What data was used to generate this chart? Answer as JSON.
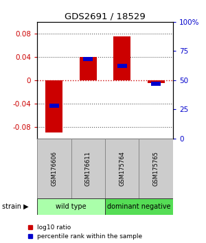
{
  "title": "GDS2691 / 18529",
  "samples": [
    "GSM176606",
    "GSM176611",
    "GSM175764",
    "GSM175765"
  ],
  "log10_ratios": [
    -0.09,
    0.04,
    0.075,
    -0.005
  ],
  "percentile_ranks": [
    28,
    68,
    62,
    47
  ],
  "groups": [
    {
      "name": "wild type",
      "samples": [
        0,
        1
      ],
      "color": "#aaffaa"
    },
    {
      "name": "dominant negative",
      "samples": [
        2,
        3
      ],
      "color": "#55dd55"
    }
  ],
  "ylim": [
    -0.1,
    0.1
  ],
  "yticks_left": [
    -0.08,
    -0.04,
    0,
    0.04,
    0.08
  ],
  "yticks_right": [
    0,
    25,
    50,
    75,
    100
  ],
  "bar_width": 0.5,
  "red_color": "#cc0000",
  "blue_color": "#0000cc",
  "group_label": "strain",
  "legend_red": "log10 ratio",
  "legend_blue": "percentile rank within the sample",
  "dotted_line_color": "#555555",
  "zero_line_color": "#cc0000",
  "sample_cell_color": "#cccccc",
  "figure_bg": "#ffffff"
}
